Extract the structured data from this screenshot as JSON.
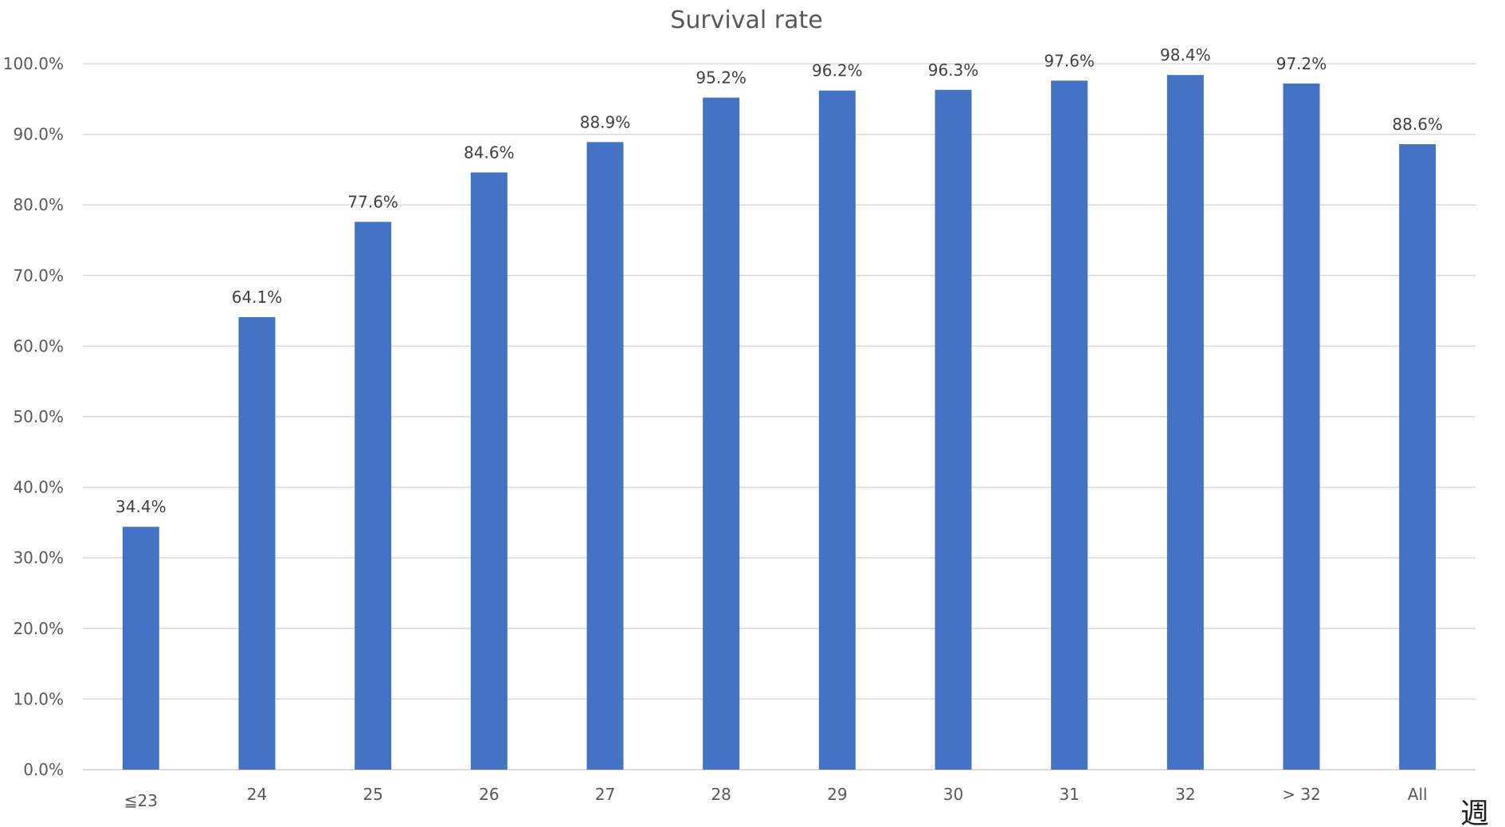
{
  "chart_data": {
    "type": "bar",
    "title": "Survival rate",
    "xlabel": "",
    "ylabel": "",
    "ylim": [
      0,
      100
    ],
    "y_ticks": [
      0,
      10,
      20,
      30,
      40,
      50,
      60,
      70,
      80,
      90,
      100
    ],
    "y_tick_labels": [
      "0.0%",
      "10.0%",
      "20.0%",
      "30.0%",
      "40.0%",
      "50.0%",
      "60.0%",
      "70.0%",
      "80.0%",
      "90.0%",
      "100.0%"
    ],
    "categories": [
      "≦23",
      "24",
      "25",
      "26",
      "27",
      "28",
      "29",
      "30",
      "31",
      "32",
      "> 32",
      "All"
    ],
    "values": [
      34.4,
      64.1,
      77.6,
      84.6,
      88.9,
      95.2,
      96.2,
      96.3,
      97.6,
      98.4,
      97.2,
      88.6
    ],
    "data_labels": [
      "34.4%",
      "64.1%",
      "77.6%",
      "84.6%",
      "88.9%",
      "95.2%",
      "96.2%",
      "96.3%",
      "97.6%",
      "98.4%",
      "97.2%",
      "88.6%"
    ],
    "bar_color": "#4472C4",
    "grid": true,
    "legend": "none",
    "corner_label": "週"
  }
}
